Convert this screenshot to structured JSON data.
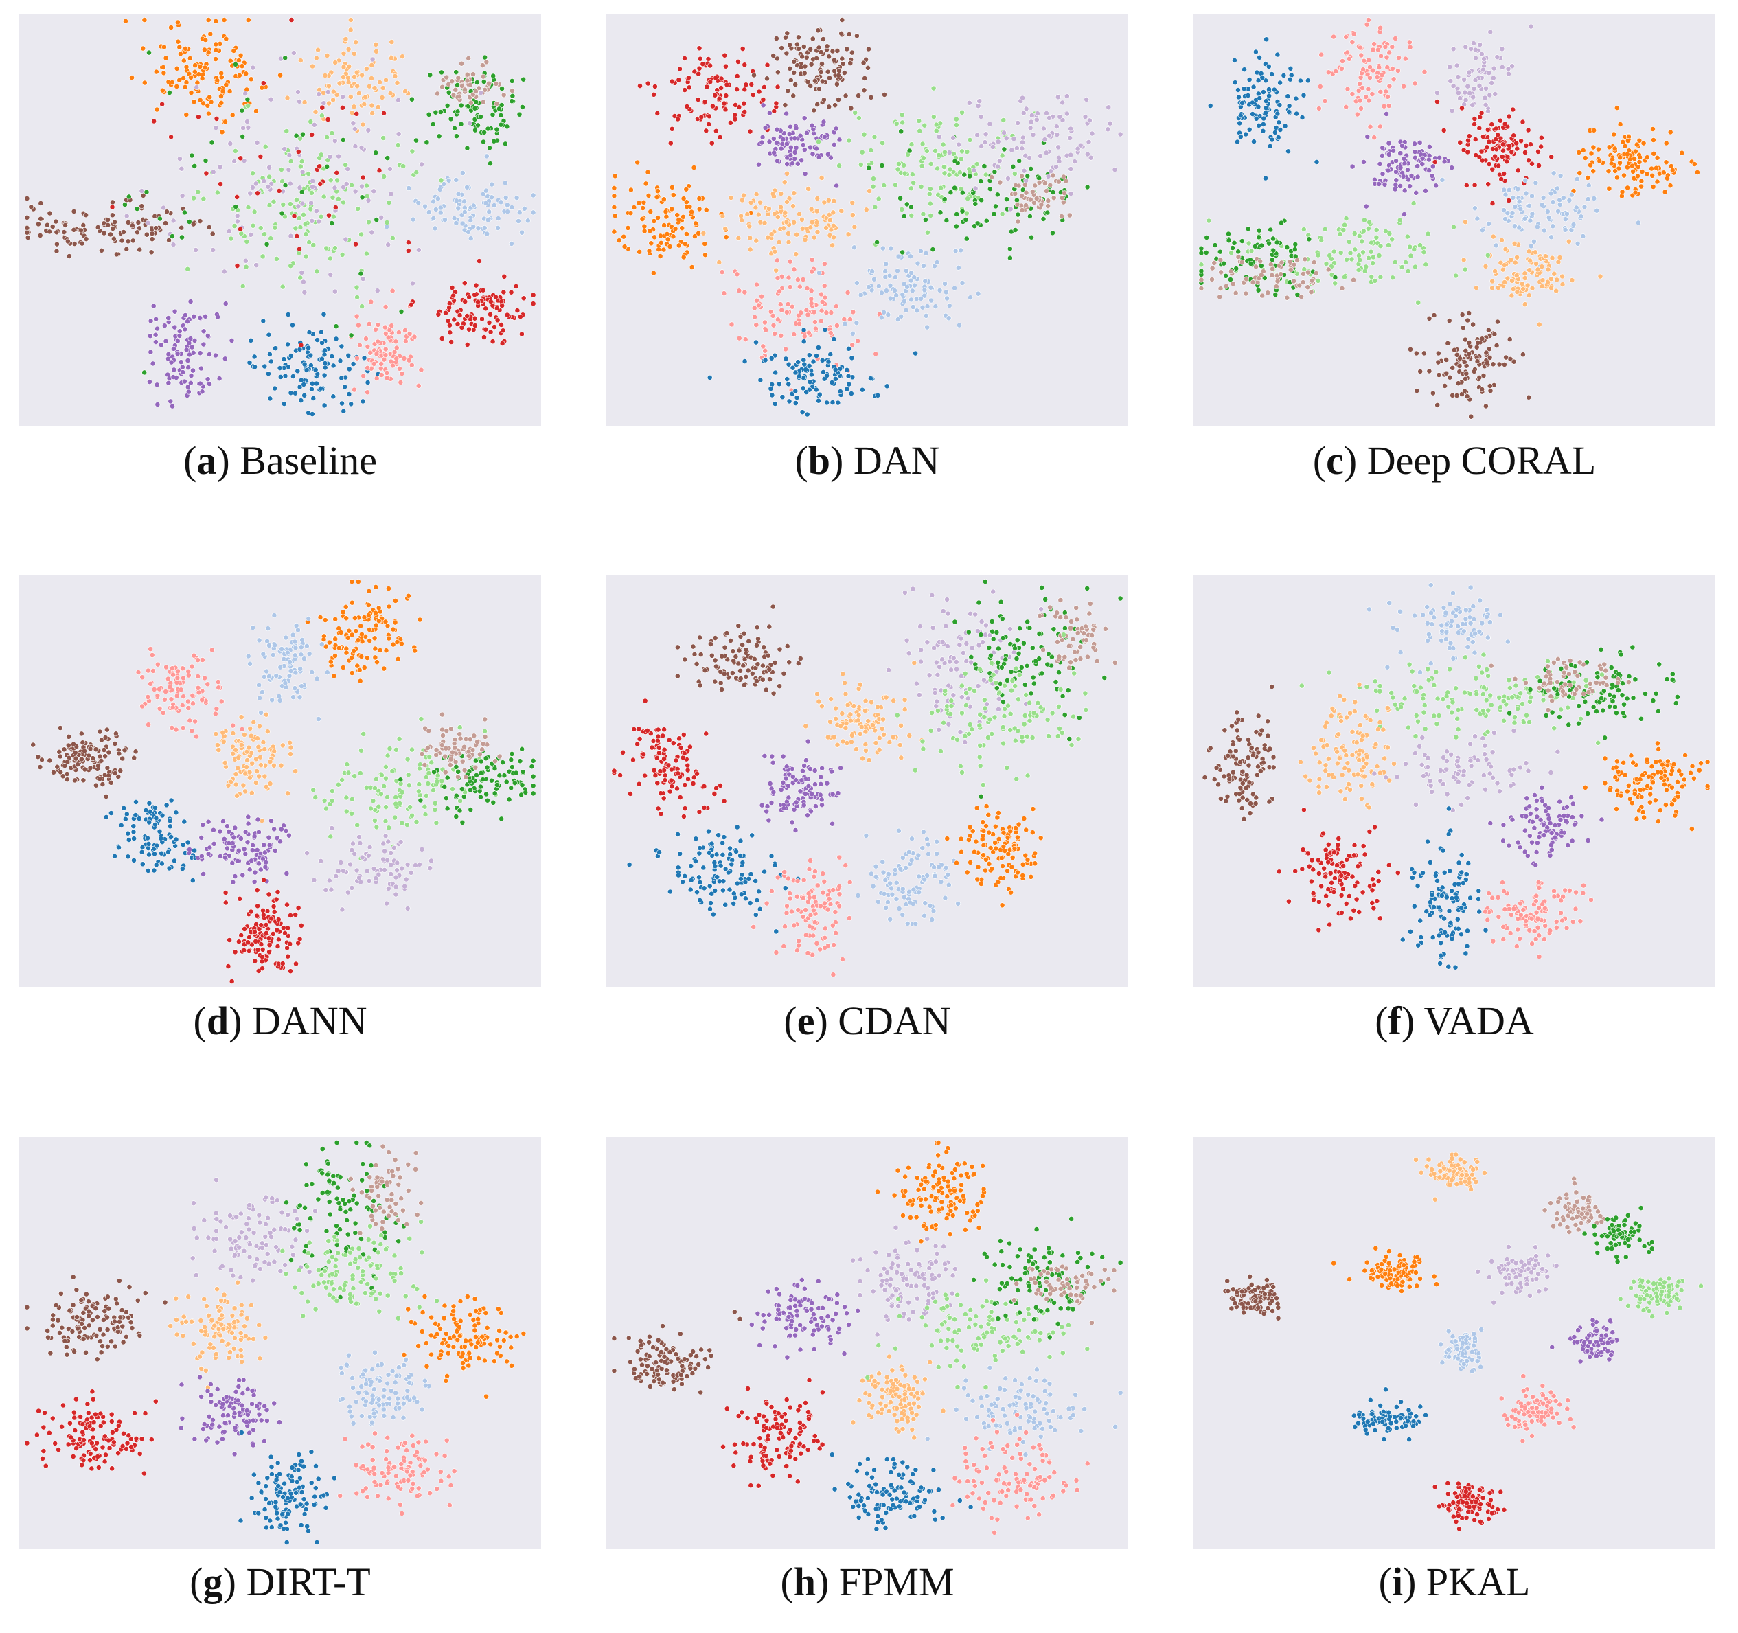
{
  "chart_data": [
    {
      "type": "scatter",
      "letter": "a",
      "title": "Baseline",
      "palette": [
        "#1f77b4",
        "#aec7e8",
        "#ff7f0e",
        "#ffbb78",
        "#2ca02c",
        "#98df8a",
        "#d62728",
        "#ff9896",
        "#9467bd",
        "#c5b0d5",
        "#8c564b",
        "#c49c94"
      ],
      "clusters": [
        {
          "cls": 2,
          "cx": 0.36,
          "cy": 0.14,
          "sx": 0.06,
          "sy": 0.06,
          "n": 130
        },
        {
          "cls": 10,
          "cx": 0.15,
          "cy": 0.52,
          "sx": 0.1,
          "sy": 0.025,
          "n": 120
        },
        {
          "cls": 8,
          "cx": 0.32,
          "cy": 0.82,
          "sx": 0.04,
          "sy": 0.06,
          "n": 100
        },
        {
          "cls": 0,
          "cx": 0.56,
          "cy": 0.86,
          "sx": 0.05,
          "sy": 0.05,
          "n": 110
        },
        {
          "cls": 7,
          "cx": 0.7,
          "cy": 0.82,
          "sx": 0.03,
          "sy": 0.05,
          "n": 90
        },
        {
          "cls": 6,
          "cx": 0.88,
          "cy": 0.72,
          "sx": 0.05,
          "sy": 0.04,
          "n": 110
        },
        {
          "cls": 1,
          "cx": 0.88,
          "cy": 0.48,
          "sx": 0.06,
          "sy": 0.04,
          "n": 100
        },
        {
          "cls": 4,
          "cx": 0.88,
          "cy": 0.23,
          "sx": 0.04,
          "sy": 0.05,
          "n": 90
        },
        {
          "cls": 11,
          "cx": 0.87,
          "cy": 0.18,
          "sx": 0.03,
          "sy": 0.03,
          "n": 50
        },
        {
          "cls": 3,
          "cx": 0.65,
          "cy": 0.16,
          "sx": 0.05,
          "sy": 0.05,
          "n": 90
        },
        {
          "cls": 5,
          "cx": 0.55,
          "cy": 0.45,
          "sx": 0.1,
          "sy": 0.1,
          "n": 140
        },
        {
          "cls": 9,
          "cx": 0.52,
          "cy": 0.42,
          "sx": 0.15,
          "sy": 0.15,
          "n": 110
        },
        {
          "cls": 6,
          "cx": 0.48,
          "cy": 0.42,
          "sx": 0.15,
          "sy": 0.15,
          "n": 40
        },
        {
          "cls": 4,
          "cx": 0.5,
          "cy": 0.45,
          "sx": 0.18,
          "sy": 0.18,
          "n": 40
        }
      ]
    },
    {
      "type": "scatter",
      "letter": "b",
      "title": "DAN",
      "palette": [
        "#1f77b4",
        "#aec7e8",
        "#ff7f0e",
        "#ffbb78",
        "#2ca02c",
        "#98df8a",
        "#d62728",
        "#ff9896",
        "#9467bd",
        "#c5b0d5",
        "#8c564b",
        "#c49c94"
      ],
      "clusters": [
        {
          "cls": 6,
          "cx": 0.21,
          "cy": 0.2,
          "sx": 0.05,
          "sy": 0.05,
          "n": 110
        },
        {
          "cls": 10,
          "cx": 0.41,
          "cy": 0.13,
          "sx": 0.05,
          "sy": 0.05,
          "n": 120
        },
        {
          "cls": 8,
          "cx": 0.36,
          "cy": 0.32,
          "sx": 0.04,
          "sy": 0.04,
          "n": 90
        },
        {
          "cls": 2,
          "cx": 0.12,
          "cy": 0.5,
          "sx": 0.05,
          "sy": 0.05,
          "n": 110
        },
        {
          "cls": 3,
          "cx": 0.36,
          "cy": 0.5,
          "sx": 0.07,
          "sy": 0.05,
          "n": 110
        },
        {
          "cls": 7,
          "cx": 0.36,
          "cy": 0.72,
          "sx": 0.06,
          "sy": 0.06,
          "n": 110
        },
        {
          "cls": 0,
          "cx": 0.4,
          "cy": 0.88,
          "sx": 0.06,
          "sy": 0.04,
          "n": 110
        },
        {
          "cls": 1,
          "cx": 0.58,
          "cy": 0.66,
          "sx": 0.05,
          "sy": 0.05,
          "n": 100
        },
        {
          "cls": 5,
          "cx": 0.62,
          "cy": 0.36,
          "sx": 0.08,
          "sy": 0.07,
          "n": 120
        },
        {
          "cls": 4,
          "cx": 0.74,
          "cy": 0.44,
          "sx": 0.09,
          "sy": 0.07,
          "n": 90
        },
        {
          "cls": 11,
          "cx": 0.82,
          "cy": 0.44,
          "sx": 0.03,
          "sy": 0.03,
          "n": 50
        },
        {
          "cls": 9,
          "cx": 0.82,
          "cy": 0.3,
          "sx": 0.08,
          "sy": 0.06,
          "n": 100
        }
      ]
    },
    {
      "type": "scatter",
      "letter": "c",
      "title": "Deep CORAL",
      "palette": [
        "#1f77b4",
        "#aec7e8",
        "#ff7f0e",
        "#ffbb78",
        "#2ca02c",
        "#98df8a",
        "#d62728",
        "#ff9896",
        "#9467bd",
        "#c5b0d5",
        "#8c564b",
        "#c49c94"
      ],
      "clusters": [
        {
          "cls": 0,
          "cx": 0.14,
          "cy": 0.22,
          "sx": 0.04,
          "sy": 0.06,
          "n": 110
        },
        {
          "cls": 7,
          "cx": 0.33,
          "cy": 0.14,
          "sx": 0.04,
          "sy": 0.06,
          "n": 100
        },
        {
          "cls": 9,
          "cx": 0.55,
          "cy": 0.15,
          "sx": 0.03,
          "sy": 0.05,
          "n": 70
        },
        {
          "cls": 8,
          "cx": 0.41,
          "cy": 0.36,
          "sx": 0.04,
          "sy": 0.04,
          "n": 100
        },
        {
          "cls": 6,
          "cx": 0.58,
          "cy": 0.32,
          "sx": 0.04,
          "sy": 0.05,
          "n": 110
        },
        {
          "cls": 2,
          "cx": 0.84,
          "cy": 0.36,
          "sx": 0.05,
          "sy": 0.04,
          "n": 120
        },
        {
          "cls": 1,
          "cx": 0.68,
          "cy": 0.48,
          "sx": 0.06,
          "sy": 0.04,
          "n": 100
        },
        {
          "cls": 3,
          "cx": 0.63,
          "cy": 0.62,
          "sx": 0.05,
          "sy": 0.04,
          "n": 100
        },
        {
          "cls": 5,
          "cx": 0.3,
          "cy": 0.58,
          "sx": 0.1,
          "sy": 0.05,
          "n": 120
        },
        {
          "cls": 4,
          "cx": 0.12,
          "cy": 0.6,
          "sx": 0.06,
          "sy": 0.04,
          "n": 90
        },
        {
          "cls": 11,
          "cx": 0.15,
          "cy": 0.64,
          "sx": 0.08,
          "sy": 0.03,
          "n": 70
        },
        {
          "cls": 10,
          "cx": 0.52,
          "cy": 0.85,
          "sx": 0.04,
          "sy": 0.05,
          "n": 120
        }
      ]
    },
    {
      "type": "scatter",
      "letter": "d",
      "title": "DANN",
      "palette": [
        "#1f77b4",
        "#aec7e8",
        "#ff7f0e",
        "#ffbb78",
        "#2ca02c",
        "#98df8a",
        "#d62728",
        "#ff9896",
        "#9467bd",
        "#c5b0d5",
        "#8c564b",
        "#c49c94"
      ],
      "clusters": [
        {
          "cls": 2,
          "cx": 0.66,
          "cy": 0.14,
          "sx": 0.04,
          "sy": 0.06,
          "n": 120
        },
        {
          "cls": 7,
          "cx": 0.31,
          "cy": 0.28,
          "sx": 0.04,
          "sy": 0.05,
          "n": 100
        },
        {
          "cls": 1,
          "cx": 0.51,
          "cy": 0.21,
          "sx": 0.03,
          "sy": 0.05,
          "n": 90
        },
        {
          "cls": 10,
          "cx": 0.13,
          "cy": 0.45,
          "sx": 0.04,
          "sy": 0.03,
          "n": 120
        },
        {
          "cls": 3,
          "cx": 0.44,
          "cy": 0.45,
          "sx": 0.04,
          "sy": 0.05,
          "n": 100
        },
        {
          "cls": 5,
          "cx": 0.72,
          "cy": 0.52,
          "sx": 0.07,
          "sy": 0.06,
          "n": 120
        },
        {
          "cls": 4,
          "cx": 0.89,
          "cy": 0.5,
          "sx": 0.05,
          "sy": 0.04,
          "n": 100
        },
        {
          "cls": 11,
          "cx": 0.84,
          "cy": 0.42,
          "sx": 0.04,
          "sy": 0.03,
          "n": 70
        },
        {
          "cls": 0,
          "cx": 0.27,
          "cy": 0.64,
          "sx": 0.04,
          "sy": 0.05,
          "n": 100
        },
        {
          "cls": 8,
          "cx": 0.43,
          "cy": 0.67,
          "sx": 0.04,
          "sy": 0.04,
          "n": 100
        },
        {
          "cls": 9,
          "cx": 0.68,
          "cy": 0.71,
          "sx": 0.05,
          "sy": 0.04,
          "n": 80
        },
        {
          "cls": 6,
          "cx": 0.47,
          "cy": 0.87,
          "sx": 0.03,
          "sy": 0.05,
          "n": 120
        }
      ]
    },
    {
      "type": "scatter",
      "letter": "e",
      "title": "CDAN",
      "palette": [
        "#1f77b4",
        "#aec7e8",
        "#ff7f0e",
        "#ffbb78",
        "#2ca02c",
        "#98df8a",
        "#d62728",
        "#ff9896",
        "#9467bd",
        "#c5b0d5",
        "#8c564b",
        "#c49c94"
      ],
      "clusters": [
        {
          "cls": 10,
          "cx": 0.26,
          "cy": 0.21,
          "sx": 0.05,
          "sy": 0.04,
          "n": 110
        },
        {
          "cls": 6,
          "cx": 0.12,
          "cy": 0.46,
          "sx": 0.04,
          "sy": 0.06,
          "n": 110
        },
        {
          "cls": 0,
          "cx": 0.22,
          "cy": 0.72,
          "sx": 0.05,
          "sy": 0.05,
          "n": 110
        },
        {
          "cls": 8,
          "cx": 0.37,
          "cy": 0.52,
          "sx": 0.04,
          "sy": 0.04,
          "n": 100
        },
        {
          "cls": 3,
          "cx": 0.49,
          "cy": 0.36,
          "sx": 0.04,
          "sy": 0.05,
          "n": 100
        },
        {
          "cls": 7,
          "cx": 0.4,
          "cy": 0.82,
          "sx": 0.04,
          "sy": 0.06,
          "n": 100
        },
        {
          "cls": 1,
          "cx": 0.58,
          "cy": 0.74,
          "sx": 0.04,
          "sy": 0.05,
          "n": 100
        },
        {
          "cls": 2,
          "cx": 0.75,
          "cy": 0.66,
          "sx": 0.04,
          "sy": 0.05,
          "n": 110
        },
        {
          "cls": 9,
          "cx": 0.67,
          "cy": 0.22,
          "sx": 0.06,
          "sy": 0.08,
          "n": 100
        },
        {
          "cls": 4,
          "cx": 0.8,
          "cy": 0.18,
          "sx": 0.06,
          "sy": 0.08,
          "n": 100
        },
        {
          "cls": 11,
          "cx": 0.9,
          "cy": 0.14,
          "sx": 0.03,
          "sy": 0.04,
          "n": 60
        },
        {
          "cls": 5,
          "cx": 0.76,
          "cy": 0.34,
          "sx": 0.08,
          "sy": 0.06,
          "n": 110
        }
      ]
    },
    {
      "type": "scatter",
      "letter": "f",
      "title": "VADA",
      "palette": [
        "#1f77b4",
        "#aec7e8",
        "#ff7f0e",
        "#ffbb78",
        "#2ca02c",
        "#98df8a",
        "#d62728",
        "#ff9896",
        "#9467bd",
        "#c5b0d5",
        "#8c564b",
        "#c49c94"
      ],
      "clusters": [
        {
          "cls": 1,
          "cx": 0.5,
          "cy": 0.12,
          "sx": 0.05,
          "sy": 0.04,
          "n": 90
        },
        {
          "cls": 5,
          "cx": 0.55,
          "cy": 0.3,
          "sx": 0.12,
          "sy": 0.04,
          "n": 140
        },
        {
          "cls": 4,
          "cx": 0.78,
          "cy": 0.28,
          "sx": 0.07,
          "sy": 0.04,
          "n": 100
        },
        {
          "cls": 11,
          "cx": 0.72,
          "cy": 0.26,
          "sx": 0.05,
          "sy": 0.03,
          "n": 60
        },
        {
          "cls": 10,
          "cx": 0.1,
          "cy": 0.46,
          "sx": 0.03,
          "sy": 0.07,
          "n": 110
        },
        {
          "cls": 3,
          "cx": 0.3,
          "cy": 0.42,
          "sx": 0.04,
          "sy": 0.07,
          "n": 110
        },
        {
          "cls": 9,
          "cx": 0.52,
          "cy": 0.46,
          "sx": 0.07,
          "sy": 0.04,
          "n": 80
        },
        {
          "cls": 2,
          "cx": 0.88,
          "cy": 0.5,
          "sx": 0.05,
          "sy": 0.04,
          "n": 120
        },
        {
          "cls": 8,
          "cx": 0.67,
          "cy": 0.61,
          "sx": 0.03,
          "sy": 0.04,
          "n": 90
        },
        {
          "cls": 6,
          "cx": 0.28,
          "cy": 0.72,
          "sx": 0.04,
          "sy": 0.06,
          "n": 110
        },
        {
          "cls": 0,
          "cx": 0.48,
          "cy": 0.8,
          "sx": 0.03,
          "sy": 0.07,
          "n": 110
        },
        {
          "cls": 7,
          "cx": 0.65,
          "cy": 0.82,
          "sx": 0.05,
          "sy": 0.04,
          "n": 100
        }
      ]
    },
    {
      "type": "scatter",
      "letter": "g",
      "title": "DIRT-T",
      "palette": [
        "#1f77b4",
        "#aec7e8",
        "#ff7f0e",
        "#ffbb78",
        "#2ca02c",
        "#98df8a",
        "#d62728",
        "#ff9896",
        "#9467bd",
        "#c5b0d5",
        "#8c564b",
        "#c49c94"
      ],
      "clusters": [
        {
          "cls": 10,
          "cx": 0.14,
          "cy": 0.45,
          "sx": 0.05,
          "sy": 0.04,
          "n": 120
        },
        {
          "cls": 6,
          "cx": 0.14,
          "cy": 0.73,
          "sx": 0.05,
          "sy": 0.04,
          "n": 120
        },
        {
          "cls": 3,
          "cx": 0.38,
          "cy": 0.47,
          "sx": 0.04,
          "sy": 0.04,
          "n": 100
        },
        {
          "cls": 9,
          "cx": 0.45,
          "cy": 0.24,
          "sx": 0.06,
          "sy": 0.06,
          "n": 100
        },
        {
          "cls": 4,
          "cx": 0.62,
          "cy": 0.18,
          "sx": 0.05,
          "sy": 0.08,
          "n": 100
        },
        {
          "cls": 11,
          "cx": 0.7,
          "cy": 0.14,
          "sx": 0.03,
          "sy": 0.05,
          "n": 60
        },
        {
          "cls": 5,
          "cx": 0.65,
          "cy": 0.33,
          "sx": 0.06,
          "sy": 0.06,
          "n": 110
        },
        {
          "cls": 2,
          "cx": 0.85,
          "cy": 0.49,
          "sx": 0.05,
          "sy": 0.04,
          "n": 120
        },
        {
          "cls": 1,
          "cx": 0.69,
          "cy": 0.62,
          "sx": 0.04,
          "sy": 0.04,
          "n": 100
        },
        {
          "cls": 8,
          "cx": 0.41,
          "cy": 0.67,
          "sx": 0.04,
          "sy": 0.04,
          "n": 100
        },
        {
          "cls": 0,
          "cx": 0.51,
          "cy": 0.87,
          "sx": 0.04,
          "sy": 0.05,
          "n": 110
        },
        {
          "cls": 7,
          "cx": 0.73,
          "cy": 0.81,
          "sx": 0.05,
          "sy": 0.04,
          "n": 100
        }
      ]
    },
    {
      "type": "scatter",
      "letter": "h",
      "title": "FPMM",
      "palette": [
        "#1f77b4",
        "#aec7e8",
        "#ff7f0e",
        "#ffbb78",
        "#2ca02c",
        "#98df8a",
        "#d62728",
        "#ff9896",
        "#9467bd",
        "#c5b0d5",
        "#8c564b",
        "#c49c94"
      ],
      "clusters": [
        {
          "cls": 2,
          "cx": 0.65,
          "cy": 0.14,
          "sx": 0.04,
          "sy": 0.05,
          "n": 120
        },
        {
          "cls": 9,
          "cx": 0.58,
          "cy": 0.36,
          "sx": 0.05,
          "sy": 0.05,
          "n": 100
        },
        {
          "cls": 8,
          "cx": 0.37,
          "cy": 0.44,
          "sx": 0.04,
          "sy": 0.04,
          "n": 100
        },
        {
          "cls": 10,
          "cx": 0.11,
          "cy": 0.55,
          "sx": 0.05,
          "sy": 0.04,
          "n": 110
        },
        {
          "cls": 6,
          "cx": 0.34,
          "cy": 0.73,
          "sx": 0.04,
          "sy": 0.05,
          "n": 110
        },
        {
          "cls": 3,
          "cx": 0.55,
          "cy": 0.63,
          "sx": 0.04,
          "sy": 0.04,
          "n": 100
        },
        {
          "cls": 5,
          "cx": 0.72,
          "cy": 0.47,
          "sx": 0.08,
          "sy": 0.05,
          "n": 110
        },
        {
          "cls": 4,
          "cx": 0.82,
          "cy": 0.36,
          "sx": 0.06,
          "sy": 0.05,
          "n": 100
        },
        {
          "cls": 11,
          "cx": 0.88,
          "cy": 0.36,
          "sx": 0.04,
          "sy": 0.03,
          "n": 60
        },
        {
          "cls": 1,
          "cx": 0.8,
          "cy": 0.66,
          "sx": 0.06,
          "sy": 0.04,
          "n": 100
        },
        {
          "cls": 7,
          "cx": 0.78,
          "cy": 0.82,
          "sx": 0.05,
          "sy": 0.05,
          "n": 110
        },
        {
          "cls": 0,
          "cx": 0.55,
          "cy": 0.87,
          "sx": 0.05,
          "sy": 0.04,
          "n": 110
        }
      ]
    },
    {
      "type": "scatter",
      "letter": "i",
      "title": "PKAL",
      "palette": [
        "#1f77b4",
        "#aec7e8",
        "#ff7f0e",
        "#ffbb78",
        "#2ca02c",
        "#98df8a",
        "#d62728",
        "#ff9896",
        "#9467bd",
        "#c5b0d5",
        "#8c564b",
        "#c49c94"
      ],
      "clusters": [
        {
          "cls": 3,
          "cx": 0.5,
          "cy": 0.09,
          "sx": 0.025,
          "sy": 0.02,
          "n": 80
        },
        {
          "cls": 11,
          "cx": 0.74,
          "cy": 0.18,
          "sx": 0.025,
          "sy": 0.025,
          "n": 70
        },
        {
          "cls": 4,
          "cx": 0.82,
          "cy": 0.24,
          "sx": 0.025,
          "sy": 0.025,
          "n": 70
        },
        {
          "cls": 2,
          "cx": 0.38,
          "cy": 0.33,
          "sx": 0.03,
          "sy": 0.02,
          "n": 100
        },
        {
          "cls": 9,
          "cx": 0.63,
          "cy": 0.33,
          "sx": 0.03,
          "sy": 0.025,
          "n": 80
        },
        {
          "cls": 5,
          "cx": 0.89,
          "cy": 0.38,
          "sx": 0.03,
          "sy": 0.02,
          "n": 80
        },
        {
          "cls": 10,
          "cx": 0.12,
          "cy": 0.39,
          "sx": 0.025,
          "sy": 0.02,
          "n": 90
        },
        {
          "cls": 1,
          "cx": 0.52,
          "cy": 0.52,
          "sx": 0.02,
          "sy": 0.025,
          "n": 70
        },
        {
          "cls": 8,
          "cx": 0.77,
          "cy": 0.5,
          "sx": 0.02,
          "sy": 0.025,
          "n": 70
        },
        {
          "cls": 0,
          "cx": 0.37,
          "cy": 0.69,
          "sx": 0.03,
          "sy": 0.02,
          "n": 90
        },
        {
          "cls": 7,
          "cx": 0.65,
          "cy": 0.67,
          "sx": 0.03,
          "sy": 0.025,
          "n": 90
        },
        {
          "cls": 6,
          "cx": 0.53,
          "cy": 0.89,
          "sx": 0.025,
          "sy": 0.02,
          "n": 100
        }
      ]
    }
  ]
}
